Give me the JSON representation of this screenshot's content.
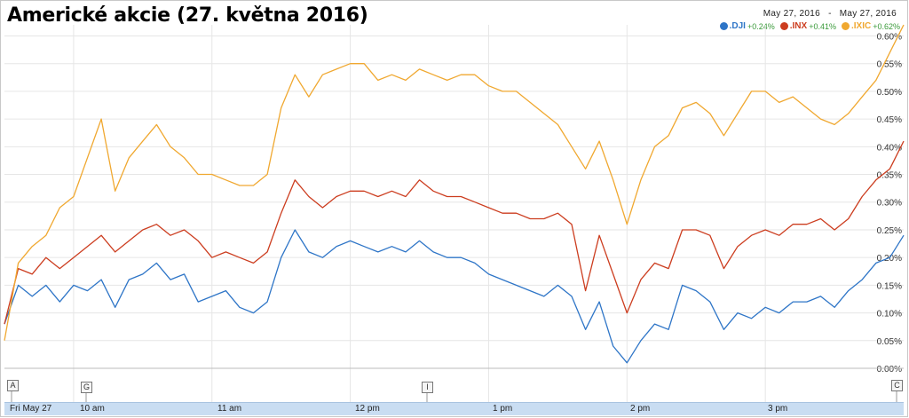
{
  "header": {
    "title": "Americké akcie (27. května 2016)",
    "date_from": "May 27, 2016",
    "date_sep": "-",
    "date_to": "May 27, 2016"
  },
  "legend": [
    {
      "name": ".DJI",
      "change": "+0.24%",
      "color": "#2e75c7"
    },
    {
      "name": ".INX",
      "change": "+0.41%",
      "color": "#cc3d1f"
    },
    {
      "name": ".IXIC",
      "change": "+0.62%",
      "color": "#f0a830"
    }
  ],
  "time_axis": {
    "labels": [
      "Fri May 27",
      "10 am",
      "11 am",
      "12 pm",
      "1 pm",
      "2 pm",
      "3 pm"
    ]
  },
  "flags": [
    "A",
    "G",
    "I",
    "C"
  ],
  "chart_data": {
    "type": "line",
    "title": "Americké akcie (27. května 2016)",
    "xlabel": "",
    "ylabel": "",
    "x_unit": "hours (9.5 = 9:30 am, 16 = 4 pm)",
    "xlim": [
      9.5,
      16.0
    ],
    "ylim": [
      0,
      0.62
    ],
    "y_ticks": [
      "0.00%",
      "0.05%",
      "0.10%",
      "0.15%",
      "0.20%",
      "0.25%",
      "0.30%",
      "0.35%",
      "0.40%",
      "0.45%",
      "0.50%",
      "0.55%",
      "0.60%"
    ],
    "grid": true,
    "legend_position": "top-right",
    "series": [
      {
        "name": ".DJI",
        "color": "#2e75c7",
        "points": [
          [
            9.5,
            0.08
          ],
          [
            9.6,
            0.15
          ],
          [
            9.7,
            0.13
          ],
          [
            9.8,
            0.15
          ],
          [
            9.9,
            0.12
          ],
          [
            10.0,
            0.15
          ],
          [
            10.1,
            0.14
          ],
          [
            10.2,
            0.16
          ],
          [
            10.3,
            0.11
          ],
          [
            10.4,
            0.16
          ],
          [
            10.5,
            0.17
          ],
          [
            10.6,
            0.19
          ],
          [
            10.7,
            0.16
          ],
          [
            10.8,
            0.17
          ],
          [
            10.9,
            0.12
          ],
          [
            11.0,
            0.13
          ],
          [
            11.1,
            0.14
          ],
          [
            11.2,
            0.11
          ],
          [
            11.3,
            0.1
          ],
          [
            11.4,
            0.12
          ],
          [
            11.5,
            0.2
          ],
          [
            11.6,
            0.25
          ],
          [
            11.7,
            0.21
          ],
          [
            11.8,
            0.2
          ],
          [
            11.9,
            0.22
          ],
          [
            12.0,
            0.23
          ],
          [
            12.1,
            0.22
          ],
          [
            12.2,
            0.21
          ],
          [
            12.3,
            0.22
          ],
          [
            12.4,
            0.21
          ],
          [
            12.5,
            0.23
          ],
          [
            12.6,
            0.21
          ],
          [
            12.7,
            0.2
          ],
          [
            12.8,
            0.2
          ],
          [
            12.9,
            0.19
          ],
          [
            13.0,
            0.17
          ],
          [
            13.1,
            0.16
          ],
          [
            13.2,
            0.15
          ],
          [
            13.3,
            0.14
          ],
          [
            13.4,
            0.13
          ],
          [
            13.5,
            0.15
          ],
          [
            13.6,
            0.13
          ],
          [
            13.7,
            0.07
          ],
          [
            13.8,
            0.12
          ],
          [
            13.9,
            0.04
          ],
          [
            14.0,
            0.01
          ],
          [
            14.1,
            0.05
          ],
          [
            14.2,
            0.08
          ],
          [
            14.3,
            0.07
          ],
          [
            14.4,
            0.15
          ],
          [
            14.5,
            0.14
          ],
          [
            14.6,
            0.12
          ],
          [
            14.7,
            0.07
          ],
          [
            14.8,
            0.1
          ],
          [
            14.9,
            0.09
          ],
          [
            15.0,
            0.11
          ],
          [
            15.1,
            0.1
          ],
          [
            15.2,
            0.12
          ],
          [
            15.3,
            0.12
          ],
          [
            15.4,
            0.13
          ],
          [
            15.5,
            0.11
          ],
          [
            15.6,
            0.14
          ],
          [
            15.7,
            0.16
          ],
          [
            15.8,
            0.19
          ],
          [
            15.9,
            0.2
          ],
          [
            16.0,
            0.24
          ]
        ]
      },
      {
        "name": ".INX",
        "color": "#cc3d1f",
        "points": [
          [
            9.5,
            0.08
          ],
          [
            9.6,
            0.18
          ],
          [
            9.7,
            0.17
          ],
          [
            9.8,
            0.2
          ],
          [
            9.9,
            0.18
          ],
          [
            10.0,
            0.2
          ],
          [
            10.1,
            0.22
          ],
          [
            10.2,
            0.24
          ],
          [
            10.3,
            0.21
          ],
          [
            10.4,
            0.23
          ],
          [
            10.5,
            0.25
          ],
          [
            10.6,
            0.26
          ],
          [
            10.7,
            0.24
          ],
          [
            10.8,
            0.25
          ],
          [
            10.9,
            0.23
          ],
          [
            11.0,
            0.2
          ],
          [
            11.1,
            0.21
          ],
          [
            11.2,
            0.2
          ],
          [
            11.3,
            0.19
          ],
          [
            11.4,
            0.21
          ],
          [
            11.5,
            0.28
          ],
          [
            11.6,
            0.34
          ],
          [
            11.7,
            0.31
          ],
          [
            11.8,
            0.29
          ],
          [
            11.9,
            0.31
          ],
          [
            12.0,
            0.32
          ],
          [
            12.1,
            0.32
          ],
          [
            12.2,
            0.31
          ],
          [
            12.3,
            0.32
          ],
          [
            12.4,
            0.31
          ],
          [
            12.5,
            0.34
          ],
          [
            12.6,
            0.32
          ],
          [
            12.7,
            0.31
          ],
          [
            12.8,
            0.31
          ],
          [
            12.9,
            0.3
          ],
          [
            13.0,
            0.29
          ],
          [
            13.1,
            0.28
          ],
          [
            13.2,
            0.28
          ],
          [
            13.3,
            0.27
          ],
          [
            13.4,
            0.27
          ],
          [
            13.5,
            0.28
          ],
          [
            13.6,
            0.26
          ],
          [
            13.7,
            0.14
          ],
          [
            13.8,
            0.24
          ],
          [
            13.9,
            0.17
          ],
          [
            14.0,
            0.1
          ],
          [
            14.1,
            0.16
          ],
          [
            14.2,
            0.19
          ],
          [
            14.3,
            0.18
          ],
          [
            14.4,
            0.25
          ],
          [
            14.5,
            0.25
          ],
          [
            14.6,
            0.24
          ],
          [
            14.7,
            0.18
          ],
          [
            14.8,
            0.22
          ],
          [
            14.9,
            0.24
          ],
          [
            15.0,
            0.25
          ],
          [
            15.1,
            0.24
          ],
          [
            15.2,
            0.26
          ],
          [
            15.3,
            0.26
          ],
          [
            15.4,
            0.27
          ],
          [
            15.5,
            0.25
          ],
          [
            15.6,
            0.27
          ],
          [
            15.7,
            0.31
          ],
          [
            15.8,
            0.34
          ],
          [
            15.9,
            0.36
          ],
          [
            16.0,
            0.41
          ]
        ]
      },
      {
        "name": ".IXIC",
        "color": "#f0a830",
        "points": [
          [
            9.5,
            0.05
          ],
          [
            9.6,
            0.19
          ],
          [
            9.7,
            0.22
          ],
          [
            9.8,
            0.24
          ],
          [
            9.9,
            0.29
          ],
          [
            10.0,
            0.31
          ],
          [
            10.1,
            0.38
          ],
          [
            10.2,
            0.45
          ],
          [
            10.3,
            0.32
          ],
          [
            10.4,
            0.38
          ],
          [
            10.5,
            0.41
          ],
          [
            10.6,
            0.44
          ],
          [
            10.7,
            0.4
          ],
          [
            10.8,
            0.38
          ],
          [
            10.9,
            0.35
          ],
          [
            11.0,
            0.35
          ],
          [
            11.1,
            0.34
          ],
          [
            11.2,
            0.33
          ],
          [
            11.3,
            0.33
          ],
          [
            11.4,
            0.35
          ],
          [
            11.5,
            0.47
          ],
          [
            11.6,
            0.53
          ],
          [
            11.7,
            0.49
          ],
          [
            11.8,
            0.53
          ],
          [
            11.9,
            0.54
          ],
          [
            12.0,
            0.55
          ],
          [
            12.1,
            0.55
          ],
          [
            12.2,
            0.52
          ],
          [
            12.3,
            0.53
          ],
          [
            12.4,
            0.52
          ],
          [
            12.5,
            0.54
          ],
          [
            12.6,
            0.53
          ],
          [
            12.7,
            0.52
          ],
          [
            12.8,
            0.53
          ],
          [
            12.9,
            0.53
          ],
          [
            13.0,
            0.51
          ],
          [
            13.1,
            0.5
          ],
          [
            13.2,
            0.5
          ],
          [
            13.3,
            0.48
          ],
          [
            13.4,
            0.46
          ],
          [
            13.5,
            0.44
          ],
          [
            13.6,
            0.4
          ],
          [
            13.7,
            0.36
          ],
          [
            13.8,
            0.41
          ],
          [
            13.9,
            0.34
          ],
          [
            14.0,
            0.26
          ],
          [
            14.1,
            0.34
          ],
          [
            14.2,
            0.4
          ],
          [
            14.3,
            0.42
          ],
          [
            14.4,
            0.47
          ],
          [
            14.5,
            0.48
          ],
          [
            14.6,
            0.46
          ],
          [
            14.7,
            0.42
          ],
          [
            14.8,
            0.46
          ],
          [
            14.9,
            0.5
          ],
          [
            15.0,
            0.5
          ],
          [
            15.1,
            0.48
          ],
          [
            15.2,
            0.49
          ],
          [
            15.3,
            0.47
          ],
          [
            15.4,
            0.45
          ],
          [
            15.5,
            0.44
          ],
          [
            15.6,
            0.46
          ],
          [
            15.7,
            0.49
          ],
          [
            15.8,
            0.52
          ],
          [
            15.9,
            0.57
          ],
          [
            16.0,
            0.62
          ]
        ]
      }
    ]
  }
}
